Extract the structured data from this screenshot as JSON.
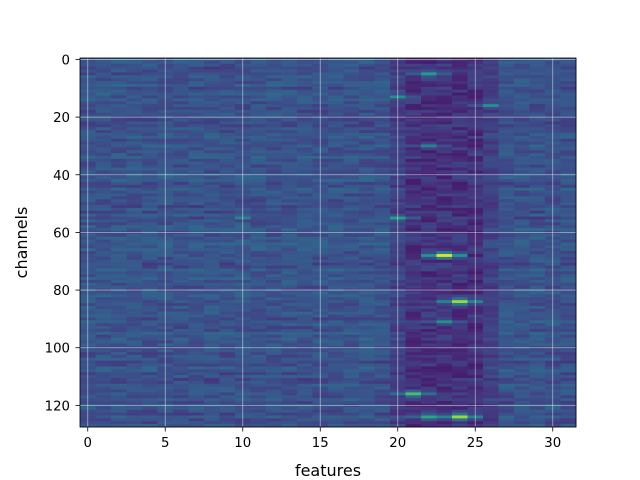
{
  "chart_data": {
    "type": "heatmap",
    "title": "",
    "xlabel": "features",
    "ylabel": "channels",
    "x_range": [
      -0.5,
      31.5
    ],
    "y_range": [
      -0.5,
      127.5
    ],
    "y_inverted": true,
    "n_columns": 32,
    "n_rows": 128,
    "colormap": "viridis",
    "value_range": [
      0,
      1
    ],
    "grid": true,
    "xticks": [
      0,
      5,
      10,
      15,
      20,
      25,
      30
    ],
    "yticks": [
      0,
      20,
      40,
      60,
      80,
      100,
      120
    ],
    "baseline_value": 0.26,
    "dark_band": {
      "columns": [
        21,
        25
      ],
      "value": 0.08
    },
    "hot_spots": [
      {
        "row": 5,
        "col": 22,
        "value": 0.55
      },
      {
        "row": 13,
        "col": 20,
        "value": 0.5
      },
      {
        "row": 16,
        "col": 26,
        "value": 0.5
      },
      {
        "row": 30,
        "col": 22,
        "value": 0.45
      },
      {
        "row": 55,
        "col": 20,
        "value": 0.55
      },
      {
        "row": 55,
        "col": 10,
        "value": 0.45
      },
      {
        "row": 68,
        "col": 23,
        "value": 0.95
      },
      {
        "row": 84,
        "col": 24,
        "value": 0.85
      },
      {
        "row": 91,
        "col": 23,
        "value": 0.5
      },
      {
        "row": 116,
        "col": 21,
        "value": 0.7
      },
      {
        "row": 124,
        "col": 24,
        "value": 0.85
      },
      {
        "row": 124,
        "col": 22,
        "value": 0.6
      }
    ]
  }
}
